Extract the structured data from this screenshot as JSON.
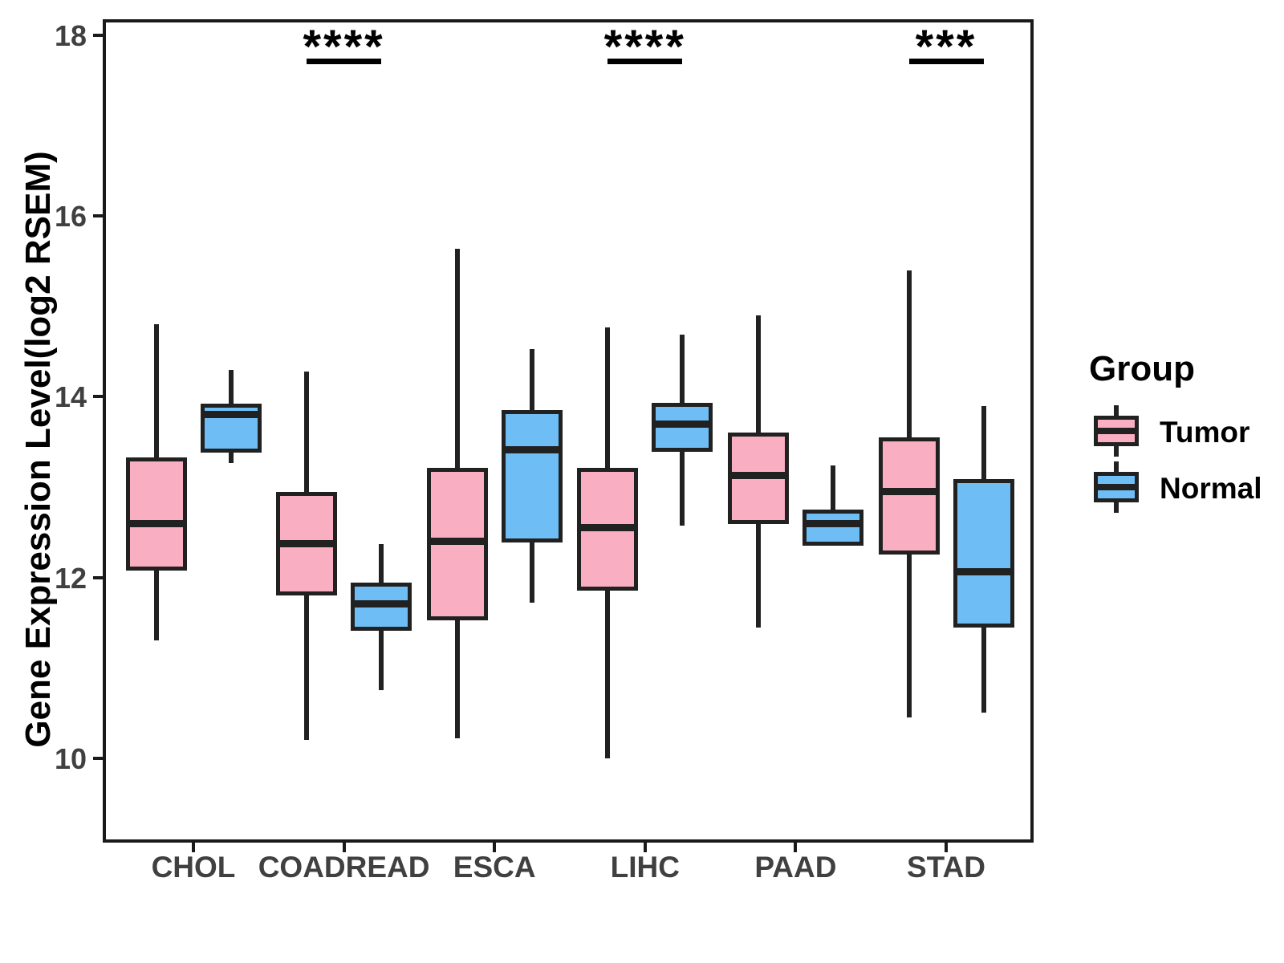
{
  "chart_data": {
    "type": "boxplot",
    "title": "",
    "xlabel": "",
    "ylabel": "Gene Expression Level(log2 RSEM)",
    "y_ticks": [
      10,
      12,
      14,
      16,
      18
    ],
    "ylim": [
      9.1,
      18.2
    ],
    "grid": "off",
    "categories": [
      "CHOL",
      "COADREAD",
      "ESCA",
      "LIHC",
      "PAAD",
      "STAD"
    ],
    "series": [
      {
        "name": "Tumor",
        "fill_color": "#F9AEC1",
        "boxes": [
          {
            "category": "CHOL",
            "min": 11.3,
            "q1": 12.08,
            "median": 12.6,
            "q3": 13.33,
            "max": 14.8
          },
          {
            "category": "COADREAD",
            "min": 10.2,
            "q1": 11.8,
            "median": 12.37,
            "q3": 12.95,
            "max": 14.28
          },
          {
            "category": "ESCA",
            "min": 10.22,
            "q1": 11.53,
            "median": 12.4,
            "q3": 13.21,
            "max": 15.64
          },
          {
            "category": "LIHC",
            "min": 10.0,
            "q1": 11.85,
            "median": 12.55,
            "q3": 13.21,
            "max": 14.77
          },
          {
            "category": "PAAD",
            "min": 11.45,
            "q1": 12.59,
            "median": 13.13,
            "q3": 13.6,
            "max": 14.9
          },
          {
            "category": "STAD",
            "min": 10.45,
            "q1": 12.25,
            "median": 12.95,
            "q3": 13.55,
            "max": 15.4
          }
        ]
      },
      {
        "name": "Normal",
        "fill_color": "#6EBEF5",
        "boxes": [
          {
            "category": "CHOL",
            "min": 13.27,
            "q1": 13.38,
            "median": 13.8,
            "q3": 13.92,
            "max": 14.3
          },
          {
            "category": "COADREAD",
            "min": 10.75,
            "q1": 11.41,
            "median": 11.71,
            "q3": 11.94,
            "max": 12.37
          },
          {
            "category": "ESCA",
            "min": 11.72,
            "q1": 12.39,
            "median": 13.41,
            "q3": 13.85,
            "max": 14.53
          },
          {
            "category": "LIHC",
            "min": 12.57,
            "q1": 13.39,
            "median": 13.7,
            "q3": 13.93,
            "max": 14.69
          },
          {
            "category": "PAAD",
            "min": 12.35,
            "q1": 12.35,
            "median": 12.6,
            "q3": 12.75,
            "max": 13.24
          },
          {
            "category": "STAD",
            "min": 10.5,
            "q1": 11.45,
            "median": 12.06,
            "q3": 13.09,
            "max": 13.9
          }
        ]
      }
    ],
    "significance": [
      {
        "category": "COADREAD",
        "label": "****"
      },
      {
        "category": "LIHC",
        "label": "****"
      },
      {
        "category": "STAD",
        "label": "***"
      }
    ],
    "legend": {
      "title": "Group",
      "items": [
        {
          "label": "Tumor",
          "color": "#F9AEC1"
        },
        {
          "label": "Normal",
          "color": "#6EBEF5"
        }
      ],
      "position": "right"
    },
    "colors": {
      "box_line": "#212121",
      "panel_border": "#1a1a1a",
      "axis_text": "#404040",
      "significance_text": "#000000"
    }
  }
}
